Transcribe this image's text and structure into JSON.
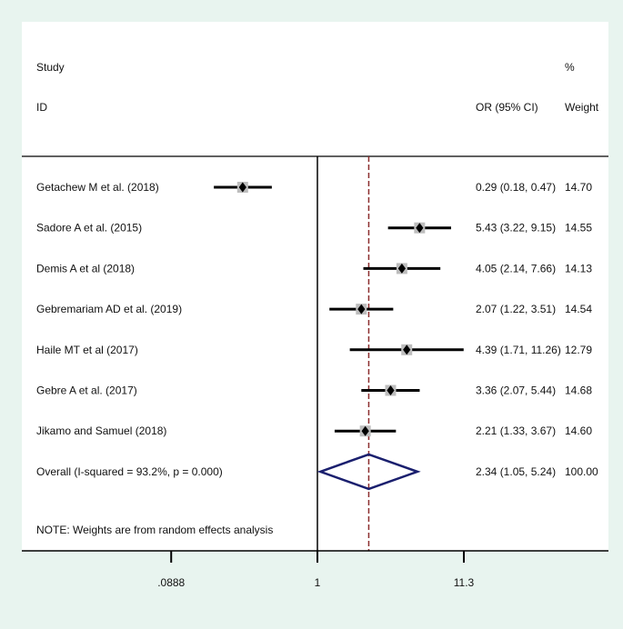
{
  "chart_data": {
    "type": "forest",
    "header": {
      "study_line1": "Study",
      "study_line2": "ID",
      "or_header": "OR (95% CI)",
      "weight_line1": "%",
      "weight_line2": "Weight"
    },
    "studies": [
      {
        "label": "Getachew M et al.  (2018)",
        "or": 0.29,
        "lo": 0.18,
        "hi": 0.47,
        "ci_text": "0.29 (0.18, 0.47)",
        "weight": "14.70"
      },
      {
        "label": "Sadore A et al.  (2015)",
        "or": 5.43,
        "lo": 3.22,
        "hi": 9.15,
        "ci_text": "5.43 (3.22, 9.15)",
        "weight": "14.55"
      },
      {
        "label": "Demis A et al  (2018)",
        "or": 4.05,
        "lo": 2.14,
        "hi": 7.66,
        "ci_text": "4.05 (2.14, 7.66)",
        "weight": "14.13"
      },
      {
        "label": "Gebremariam AD et al.  (2019)",
        "or": 2.07,
        "lo": 1.22,
        "hi": 3.51,
        "ci_text": "2.07 (1.22, 3.51)",
        "weight": "14.54"
      },
      {
        "label": "Haile MT et al  (2017)",
        "or": 4.39,
        "lo": 1.71,
        "hi": 11.26,
        "ci_text": "4.39 (1.71, 11.26)",
        "weight": "12.79"
      },
      {
        "label": "Gebre A et al.  (2017)",
        "or": 3.36,
        "lo": 2.07,
        "hi": 5.44,
        "ci_text": "3.36 (2.07, 5.44)",
        "weight": "14.68"
      },
      {
        "label": "Jikamo and Samuel (2018)",
        "or": 2.21,
        "lo": 1.33,
        "hi": 3.67,
        "ci_text": "2.21 (1.33, 3.67)",
        "weight": "14.60"
      }
    ],
    "overall": {
      "label": "Overall  (I-squared = 93.2%, p = 0.000)",
      "or": 2.34,
      "lo": 1.05,
      "hi": 5.24,
      "ci_text": "2.34 (1.05, 5.24)",
      "weight": "100.00"
    },
    "note": "NOTE: Weights are from random effects analysis",
    "x_scale": "log",
    "x_ticks": [
      {
        "value": 0.0888,
        "label": ".0888"
      },
      {
        "value": 1,
        "label": "1"
      },
      {
        "value": 11.3,
        "label": "11.3"
      }
    ],
    "null_line": 1,
    "colors": {
      "background": "#e8f4ef",
      "plot_bg": "#ffffff",
      "diamond": "#1a1f6e",
      "ref_line": "#8b2d2d",
      "box": "#bdbdbd",
      "ink": "#000000"
    }
  }
}
